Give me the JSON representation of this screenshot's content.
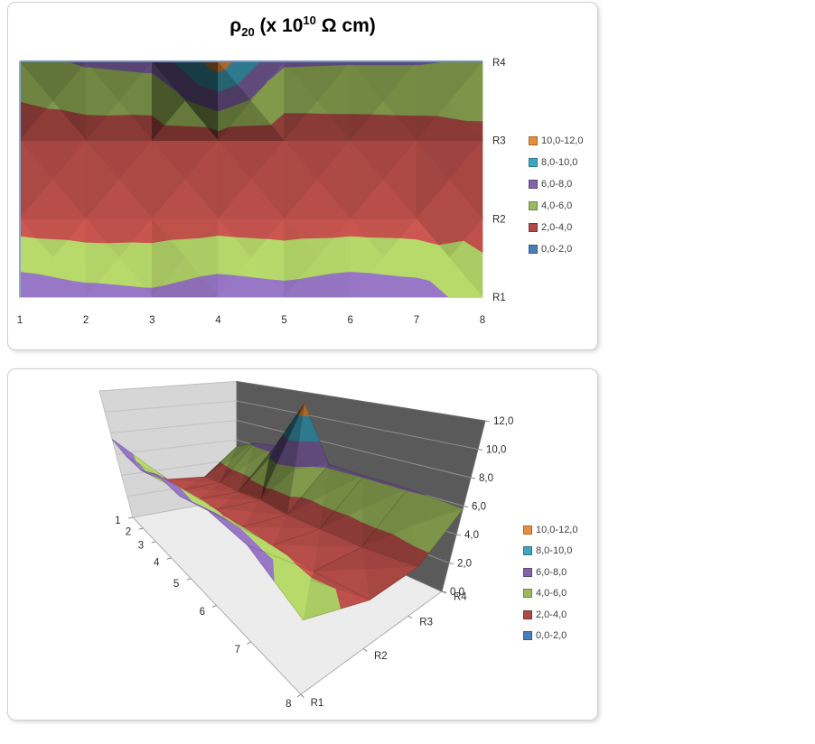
{
  "title": {
    "rho": "ρ",
    "subscript": "20",
    "mid": " (x 10",
    "superscript": "10",
    "end": " Ω cm)",
    "plain": "ρ20 (x 10^10 Ω cm)"
  },
  "legend": {
    "position": "right",
    "items": [
      {
        "label": "10,0-12,0",
        "color": "#E78E3C"
      },
      {
        "label": "8,0-10,0",
        "color": "#3FA6C2"
      },
      {
        "label": "6,0-8,0",
        "color": "#8265A9"
      },
      {
        "label": "4,0-6,0",
        "color": "#9CB95B"
      },
      {
        "label": "2,0-4,0",
        "color": "#AE4A45"
      },
      {
        "label": "0,0-2,0",
        "color": "#4A7EBB"
      }
    ]
  },
  "chart_data": [
    {
      "type": "surface-contour",
      "title": "ρ20 (x 10^10 Ω cm)",
      "categories": [
        "1",
        "2",
        "3",
        "4",
        "5",
        "6",
        "7",
        "8"
      ],
      "series": [
        {
          "name": "R1",
          "values": [
            7.4,
            6.7,
            6.4,
            7.2,
            6.8,
            7.4,
            7.0,
            4.9
          ]
        },
        {
          "name": "R2",
          "values": [
            3.0,
            2.8,
            2.9,
            3.1,
            2.9,
            3.0,
            2.9,
            3.3
          ]
        },
        {
          "name": "R3",
          "values": [
            2.7,
            2.9,
            2.8,
            3.0,
            2.8,
            2.9,
            3.0,
            3.4
          ]
        },
        {
          "name": "R4",
          "values": [
            5.3,
            6.2,
            6.5,
            11.0,
            6.2,
            6.1,
            6.1,
            5.8
          ]
        }
      ],
      "series_axis_labels_right": [
        "R4",
        "R3",
        "R2",
        "R1"
      ],
      "value_bands": [
        "0,0-2,0",
        "2,0-4,0",
        "4,0-6,0",
        "6,0-8,0",
        "8,0-10,0",
        "10,0-12,0"
      ],
      "band_colors": [
        "#4A7EBB",
        "#AE4A45",
        "#9CB95B",
        "#8265A9",
        "#3FA6C2",
        "#E78E3C"
      ],
      "value_range": [
        0,
        12
      ],
      "legend_position": "right"
    },
    {
      "type": "surface-3d",
      "categories": [
        "1",
        "2",
        "3",
        "4",
        "5",
        "6",
        "7",
        "8"
      ],
      "series": [
        {
          "name": "R1",
          "values": [
            7.4,
            6.7,
            6.4,
            7.2,
            6.8,
            7.4,
            7.0,
            4.9
          ]
        },
        {
          "name": "R2",
          "values": [
            3.0,
            2.8,
            2.9,
            3.1,
            2.9,
            3.0,
            2.9,
            3.3
          ]
        },
        {
          "name": "R3",
          "values": [
            2.7,
            2.9,
            2.8,
            3.0,
            2.8,
            2.9,
            3.0,
            3.4
          ]
        },
        {
          "name": "R4",
          "values": [
            5.3,
            6.2,
            6.5,
            11.0,
            6.2,
            6.1,
            6.1,
            5.8
          ]
        }
      ],
      "series_axis_labels": [
        "R1",
        "R2",
        "R3",
        "R4"
      ],
      "value_axis_ticks": [
        "0,0",
        "2,0",
        "4,0",
        "6,0",
        "8,0",
        "10,0",
        "12,0"
      ],
      "band_colors": [
        "#4A7EBB",
        "#AE4A45",
        "#9CB95B",
        "#8265A9",
        "#3FA6C2",
        "#E78E3C"
      ],
      "value_range": [
        0,
        12
      ],
      "legend_position": "right"
    }
  ]
}
